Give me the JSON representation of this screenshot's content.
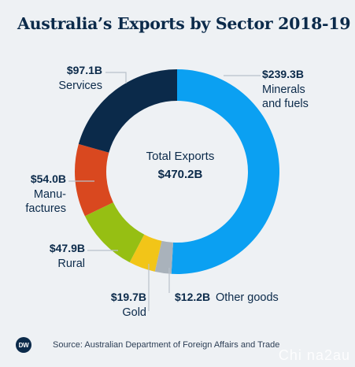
{
  "chart_data": {
    "type": "pie",
    "title": "Australia’s Exports by Sector 2018-19",
    "center": {
      "label": "Total Exports",
      "value": "$470.2B"
    },
    "series": [
      {
        "slices": [
          {
            "value": 239.3,
            "value_label": "$239.3B",
            "label": [
              "Minerals",
              "and fuels"
            ],
            "color": "#0ba0f2"
          },
          {
            "value": 12.2,
            "value_label": "$12.2B",
            "label": [
              "Other goods"
            ],
            "color": "#a9b2bb"
          },
          {
            "value": 19.7,
            "value_label": "$19.7B",
            "label": [
              "Gold"
            ],
            "color": "#f2c518"
          },
          {
            "value": 47.9,
            "value_label": "$47.9B",
            "label": [
              "Rural"
            ],
            "color": "#96bf13"
          },
          {
            "value": 54.0,
            "value_label": "$54.0B",
            "label": [
              "Manu-",
              "factures"
            ],
            "color": "#d9481f"
          },
          {
            "value": 97.1,
            "value_label": "$97.1B",
            "label": [
              "Services"
            ],
            "color": "#0b2a4a"
          }
        ]
      }
    ]
  },
  "footer": {
    "logo": "DW",
    "source": "Source: Australian Department of Foreign Affairs and Trade"
  },
  "watermark": "Chi na2au"
}
